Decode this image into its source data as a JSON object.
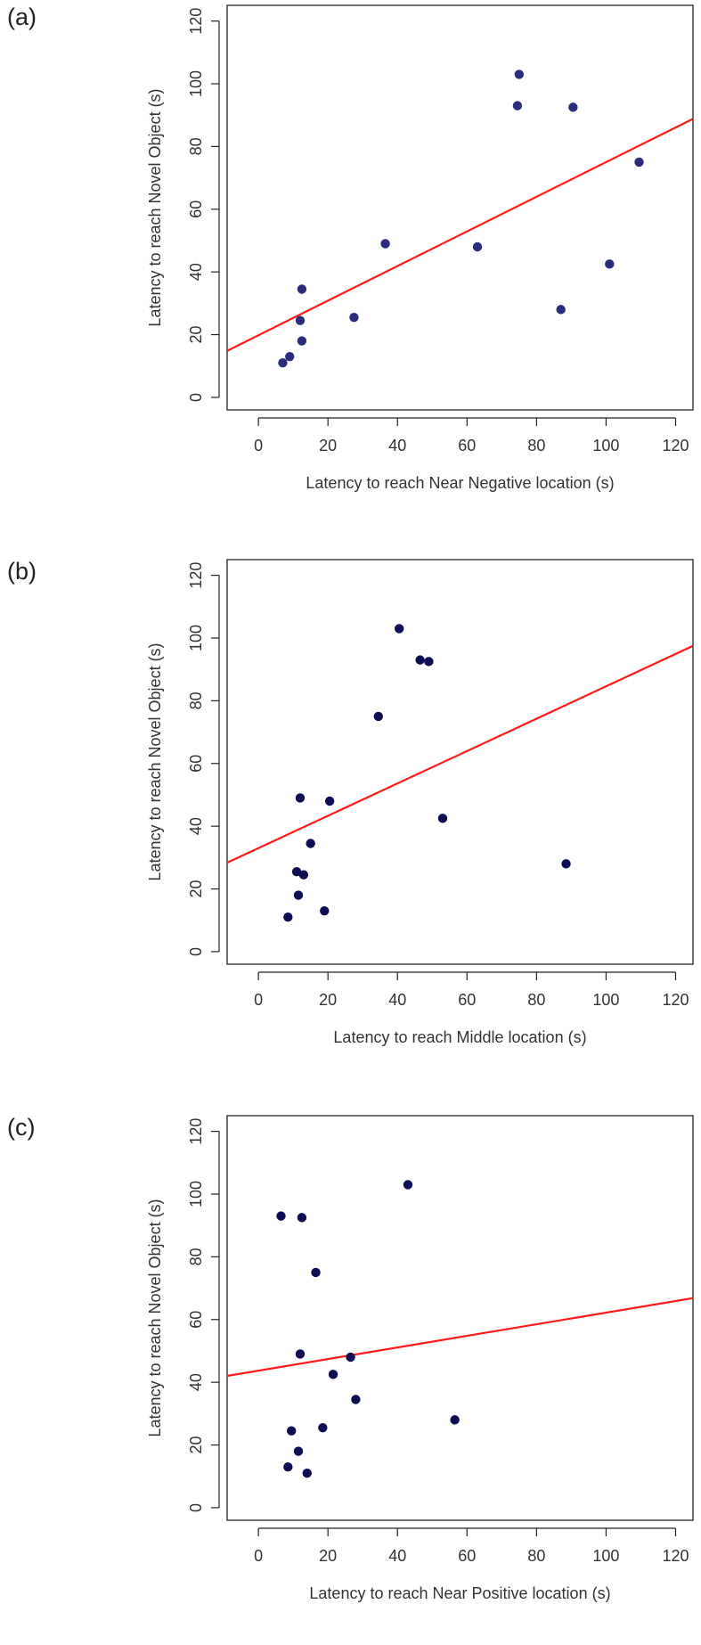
{
  "panels": [
    {
      "label": "(a)"
    },
    {
      "label": "(b)"
    },
    {
      "label": "(c)"
    }
  ],
  "chart_data": [
    {
      "type": "scatter",
      "title": "",
      "xlabel": "Latency to reach Near Negative location (s)",
      "ylabel": "Latency to reach Novel Object (s)",
      "xlim": [
        -9,
        125
      ],
      "ylim": [
        -4,
        125
      ],
      "xticks": [
        0,
        20,
        40,
        60,
        80,
        100,
        120
      ],
      "yticks": [
        0,
        20,
        40,
        60,
        80,
        100,
        120
      ],
      "point_color": "#2b2d7c",
      "line_color": "#ff1a1a",
      "points": [
        {
          "x": 7,
          "y": 11
        },
        {
          "x": 9,
          "y": 13
        },
        {
          "x": 12.5,
          "y": 18
        },
        {
          "x": 12,
          "y": 24.5
        },
        {
          "x": 12.5,
          "y": 34.5
        },
        {
          "x": 27.5,
          "y": 25.5
        },
        {
          "x": 36.5,
          "y": 49
        },
        {
          "x": 63,
          "y": 48
        },
        {
          "x": 74.5,
          "y": 93
        },
        {
          "x": 75,
          "y": 103
        },
        {
          "x": 87,
          "y": 28
        },
        {
          "x": 90.5,
          "y": 92.5
        },
        {
          "x": 101,
          "y": 42.5
        },
        {
          "x": 109.5,
          "y": 75
        }
      ],
      "fit_line": {
        "intercept": 19.8,
        "slope": 0.552
      }
    },
    {
      "type": "scatter",
      "title": "",
      "xlabel": "Latency to reach Middle location (s)",
      "ylabel": "Latency to reach Novel Object (s)",
      "xlim": [
        -9,
        125
      ],
      "ylim": [
        -4,
        125
      ],
      "xticks": [
        0,
        20,
        40,
        60,
        80,
        100,
        120
      ],
      "yticks": [
        0,
        20,
        40,
        60,
        80,
        100,
        120
      ],
      "point_color": "#0c0d52",
      "line_color": "#ff1a1a",
      "points": [
        {
          "x": 8.5,
          "y": 11
        },
        {
          "x": 11,
          "y": 25.5
        },
        {
          "x": 11.5,
          "y": 18
        },
        {
          "x": 12,
          "y": 49
        },
        {
          "x": 13,
          "y": 24.5
        },
        {
          "x": 15,
          "y": 34.5
        },
        {
          "x": 19,
          "y": 13
        },
        {
          "x": 20.5,
          "y": 48
        },
        {
          "x": 34.5,
          "y": 75
        },
        {
          "x": 40.5,
          "y": 103
        },
        {
          "x": 46.5,
          "y": 93
        },
        {
          "x": 49,
          "y": 92.5
        },
        {
          "x": 53,
          "y": 42.5
        },
        {
          "x": 88.5,
          "y": 28
        }
      ],
      "fit_line": {
        "intercept": 33.0,
        "slope": 0.516
      }
    },
    {
      "type": "scatter",
      "title": "",
      "xlabel": "Latency to reach Near Positive location (s)",
      "ylabel": "Latency to reach Novel Object (s)",
      "xlim": [
        -9,
        125
      ],
      "ylim": [
        -4,
        125
      ],
      "xticks": [
        0,
        20,
        40,
        60,
        80,
        100,
        120
      ],
      "yticks": [
        0,
        20,
        40,
        60,
        80,
        100,
        120
      ],
      "point_color": "#0c0d52",
      "line_color": "#ff1a1a",
      "points": [
        {
          "x": 6.5,
          "y": 93
        },
        {
          "x": 8.5,
          "y": 13
        },
        {
          "x": 9.5,
          "y": 24.5
        },
        {
          "x": 11.5,
          "y": 18
        },
        {
          "x": 12,
          "y": 49
        },
        {
          "x": 12.5,
          "y": 92.5
        },
        {
          "x": 14,
          "y": 11
        },
        {
          "x": 16.5,
          "y": 75
        },
        {
          "x": 18.5,
          "y": 25.5
        },
        {
          "x": 21.5,
          "y": 42.5
        },
        {
          "x": 26.5,
          "y": 48
        },
        {
          "x": 28,
          "y": 34.5
        },
        {
          "x": 43,
          "y": 103
        },
        {
          "x": 56.5,
          "y": 28
        }
      ],
      "fit_line": {
        "intercept": 43.7,
        "slope": 0.185
      }
    }
  ]
}
